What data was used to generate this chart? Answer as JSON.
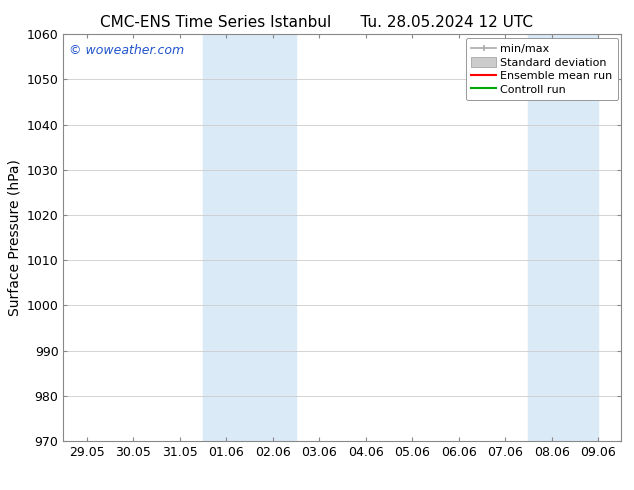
{
  "title_left": "CMC-ENS Time Series Istanbul",
  "title_right": "Tu. 28.05.2024 12 UTC",
  "ylabel": "Surface Pressure (hPa)",
  "ylim": [
    970,
    1060
  ],
  "yticks": [
    970,
    980,
    990,
    1000,
    1010,
    1020,
    1030,
    1040,
    1050,
    1060
  ],
  "xtick_labels": [
    "29.05",
    "30.05",
    "31.05",
    "01.06",
    "02.06",
    "03.06",
    "04.06",
    "05.06",
    "06.06",
    "07.06",
    "08.06",
    "09.06"
  ],
  "xtick_positions": [
    0,
    1,
    2,
    3,
    4,
    5,
    6,
    7,
    8,
    9,
    10,
    11
  ],
  "shaded_regions": [
    {
      "xmin": 3.0,
      "xmax": 5.0,
      "color": "#daeaf7"
    },
    {
      "xmin": 10.0,
      "xmax": 11.5,
      "color": "#daeaf7"
    }
  ],
  "watermark": "© woweather.com",
  "watermark_color": "#2255cc",
  "background_color": "#ffffff",
  "grid_color": "#cccccc",
  "spine_color": "#888888",
  "legend_items": [
    {
      "label": "min/max",
      "color": "#aaaaaa",
      "lw": 1.2,
      "style": "minmax"
    },
    {
      "label": "Standard deviation",
      "color": "#cccccc",
      "lw": 8,
      "style": "stddev"
    },
    {
      "label": "Ensemble mean run",
      "color": "#ff0000",
      "lw": 1.5,
      "style": "line"
    },
    {
      "label": "Controll run",
      "color": "#00aa00",
      "lw": 1.5,
      "style": "line"
    }
  ],
  "title_fontsize": 11,
  "axis_fontsize": 10,
  "tick_fontsize": 9,
  "watermark_fontsize": 9,
  "legend_fontsize": 8
}
